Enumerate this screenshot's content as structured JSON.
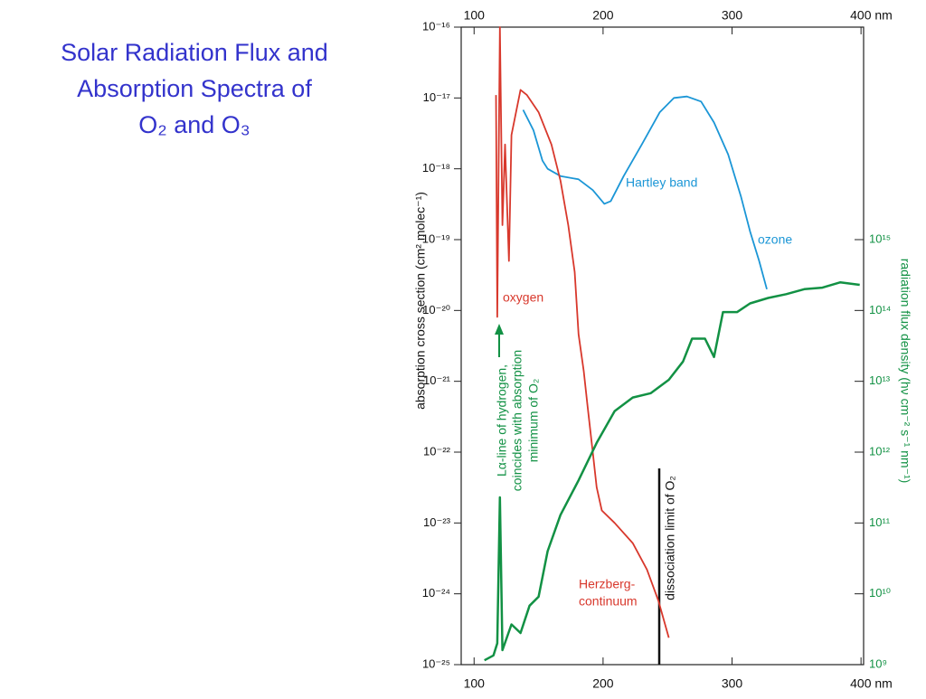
{
  "chart_data": {
    "type": "line",
    "title": [
      "Solar Radiation Flux and",
      "Absorption Spectra of",
      "O₂ and O₃"
    ],
    "y_label": "absorption cross section (cm² molec⁻¹)",
    "y2_label": "radiation flux density (hν cm⁻² s⁻¹ nm⁻¹)",
    "log_y": true,
    "grid": false,
    "xlim": [
      90,
      402
    ],
    "xticks": [
      100,
      200,
      300,
      {
        "value": 400,
        "label": "400 nm"
      }
    ],
    "ylim": [
      1e-25,
      1e-16
    ],
    "yticks": [
      {
        "value": 1e-25,
        "label": "10⁻²⁵"
      },
      {
        "value": 1e-24,
        "label": "10⁻²⁴"
      },
      {
        "value": 1e-23,
        "label": "10⁻²³"
      },
      {
        "value": 1e-22,
        "label": "10⁻²²"
      },
      {
        "value": 1e-21,
        "label": "10⁻²¹"
      },
      {
        "value": 1e-20,
        "label": "10⁻²⁰"
      },
      {
        "value": 1e-19,
        "label": "10⁻¹⁹"
      },
      {
        "value": 1e-18,
        "label": "10⁻¹⁸"
      },
      {
        "value": 1e-17,
        "label": "10⁻¹⁷"
      },
      {
        "value": 1e-16,
        "label": "10⁻¹⁶"
      }
    ],
    "y2lim": [
      1000000000.0,
      1e+18
    ],
    "y2ticks": [
      {
        "value": 1000000000.0,
        "label": "10⁹"
      },
      {
        "value": 10000000000.0,
        "label": "10¹⁰"
      },
      {
        "value": 100000000000.0,
        "label": "10¹¹"
      },
      {
        "value": 1000000000000.0,
        "label": "10¹²"
      },
      {
        "value": 10000000000000.0,
        "label": "10¹³"
      },
      {
        "value": 100000000000000.0,
        "label": "10¹⁴"
      },
      {
        "value": 1000000000000000.0,
        "label": "10¹⁵"
      }
    ],
    "series": [
      {
        "name": "ozone",
        "color": "#1b96d6",
        "x": [
          138,
          146,
          153,
          157,
          167,
          181,
          192,
          201,
          206,
          216,
          230,
          244,
          255,
          265,
          276,
          286,
          297,
          307,
          314,
          321,
          327
        ],
        "values": [
          6.8e-18,
          3.5e-18,
          1.3e-18,
          1e-18,
          7.9e-19,
          7.1e-19,
          5e-19,
          3.2e-19,
          3.5e-19,
          7.9e-19,
          2.2e-18,
          6.3e-18,
          1e-17,
          1.05e-17,
          8.9e-18,
          4.5e-18,
          1.6e-18,
          4e-19,
          1.3e-19,
          5e-20,
          2e-20
        ]
      },
      {
        "name": "oxygen",
        "color": "#d8382c",
        "x": [
          117,
          118,
          120,
          122,
          124,
          127,
          129,
          136,
          141,
          150,
          160,
          167,
          173,
          178,
          181,
          185,
          188,
          192,
          195,
          199,
          209,
          223,
          234,
          243,
          251
        ],
        "values": [
          1.1e-17,
          8.1e-21,
          1e-16,
          1.6e-19,
          2.2e-18,
          5e-20,
          3e-18,
          1.3e-17,
          1.1e-17,
          6.3e-18,
          2.2e-18,
          6.8e-19,
          1.6e-19,
          3.5e-20,
          4.6e-21,
          1.4e-21,
          4.4e-22,
          1e-22,
          3.2e-23,
          1.5e-23,
          1e-23,
          5.2e-24,
          2.2e-24,
          7.9e-25,
          2.4e-25
        ]
      },
      {
        "name": "solar flux",
        "color": "#129144",
        "axis": "y2",
        "x": [
          108,
          115,
          118,
          120,
          122,
          129,
          136,
          143,
          150,
          157,
          167,
          181,
          195,
          209,
          223,
          237,
          251,
          262,
          269,
          279,
          286,
          293,
          304,
          314,
          328,
          342,
          356,
          370,
          384,
          399
        ],
        "values": [
          1150000000.0,
          1350000000.0,
          2000000000.0,
          230000000000.0,
          1600000000.0,
          3700000000.0,
          2800000000.0,
          6800000000.0,
          9100000000.0,
          40000000000.0,
          130000000000.0,
          400000000000.0,
          1350000000000.0,
          3800000000000.0,
          5900000000000.0,
          6800000000000.0,
          10500000000000.0,
          19000000000000.0,
          40000000000000.0,
          40000000000000.0,
          22000000000000.0,
          95000000000000.0,
          95000000000000.0,
          126000000000000.0,
          150000000000000.0,
          170000000000000.0,
          200000000000000.0,
          210000000000000.0,
          250000000000000.0,
          230000000000000.0
        ]
      }
    ],
    "annotations": [
      {
        "text": "Hartley band",
        "color": "#1b96d6"
      },
      {
        "text": "ozone",
        "color": "#1b96d6"
      },
      {
        "text": "oxygen",
        "color": "#d8382c"
      },
      {
        "text": "Herzberg-",
        "color": "#d8382c"
      },
      {
        "text": "continuum",
        "color": "#d8382c"
      },
      {
        "text": "Lα-line of hydrogen,",
        "color": "#129144"
      },
      {
        "text": "coincides with absorption",
        "color": "#129144"
      },
      {
        "text": "minimum of O₂",
        "color": "#129144"
      },
      {
        "text": "dissociation limit of O₂",
        "color": "#111111"
      }
    ]
  }
}
